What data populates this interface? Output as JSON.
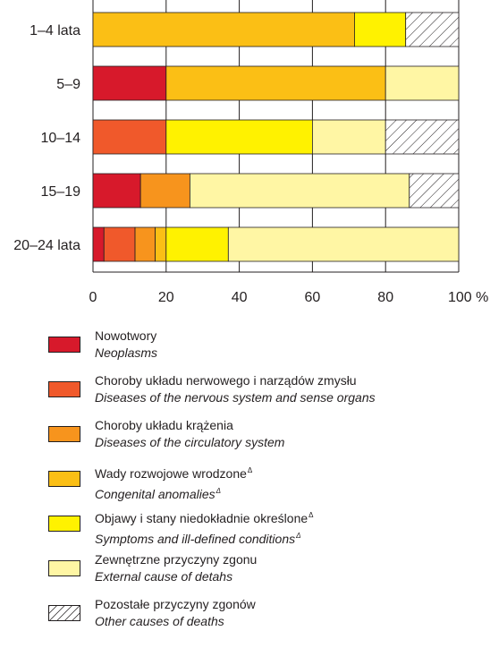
{
  "chart_data": {
    "type": "bar",
    "orientation": "horizontal",
    "stacked": true,
    "categories": [
      "1–4 lata",
      "5–9",
      "10–14",
      "15–19",
      "20–24 lata"
    ],
    "series": [
      {
        "name": "Nowotwory",
        "name_en": "Neoplasms",
        "color": "#d7192b",
        "values": [
          0,
          20,
          0,
          13,
          3
        ]
      },
      {
        "name": "Choroby układu nerwowego i narządów zmysłu",
        "name_en": "Diseases of the nervous system and sense organs",
        "color": "#f0592b",
        "values": [
          0,
          0,
          20,
          0,
          8.5
        ]
      },
      {
        "name": "Choroby układu krążenia",
        "name_en": "Diseases of the circulatory system",
        "color": "#f7941d",
        "values": [
          0,
          0,
          0,
          13.5,
          5.5
        ]
      },
      {
        "name": "Wady rozwojowe wrodzone",
        "name_en": "Congenital anomalies",
        "color": "#fbbf15",
        "values": [
          71.5,
          60,
          0,
          0,
          3
        ]
      },
      {
        "name": "Objawy i stany niedokładnie określone",
        "name_en": "Symptoms and ill-defined conditions",
        "color": "#fff200",
        "values": [
          14,
          0,
          40,
          0,
          17
        ]
      },
      {
        "name": "Zewnętrzne przyczyny zgonu",
        "name_en": "External cause of detahs",
        "color": "#fff6a4",
        "values": [
          0,
          20,
          20,
          60,
          63
        ]
      },
      {
        "name": "Pozostałe przyczyny zgonów",
        "name_en": "Other causes of deaths",
        "color": "#ffffff",
        "hatched": true,
        "values": [
          14.5,
          0,
          20,
          13.5,
          0
        ]
      }
    ],
    "xticks": [
      "0",
      "20",
      "40",
      "60",
      "80",
      "100 %"
    ],
    "xlim": [
      0,
      100
    ],
    "grid": true,
    "legend_position": "bottom"
  }
}
